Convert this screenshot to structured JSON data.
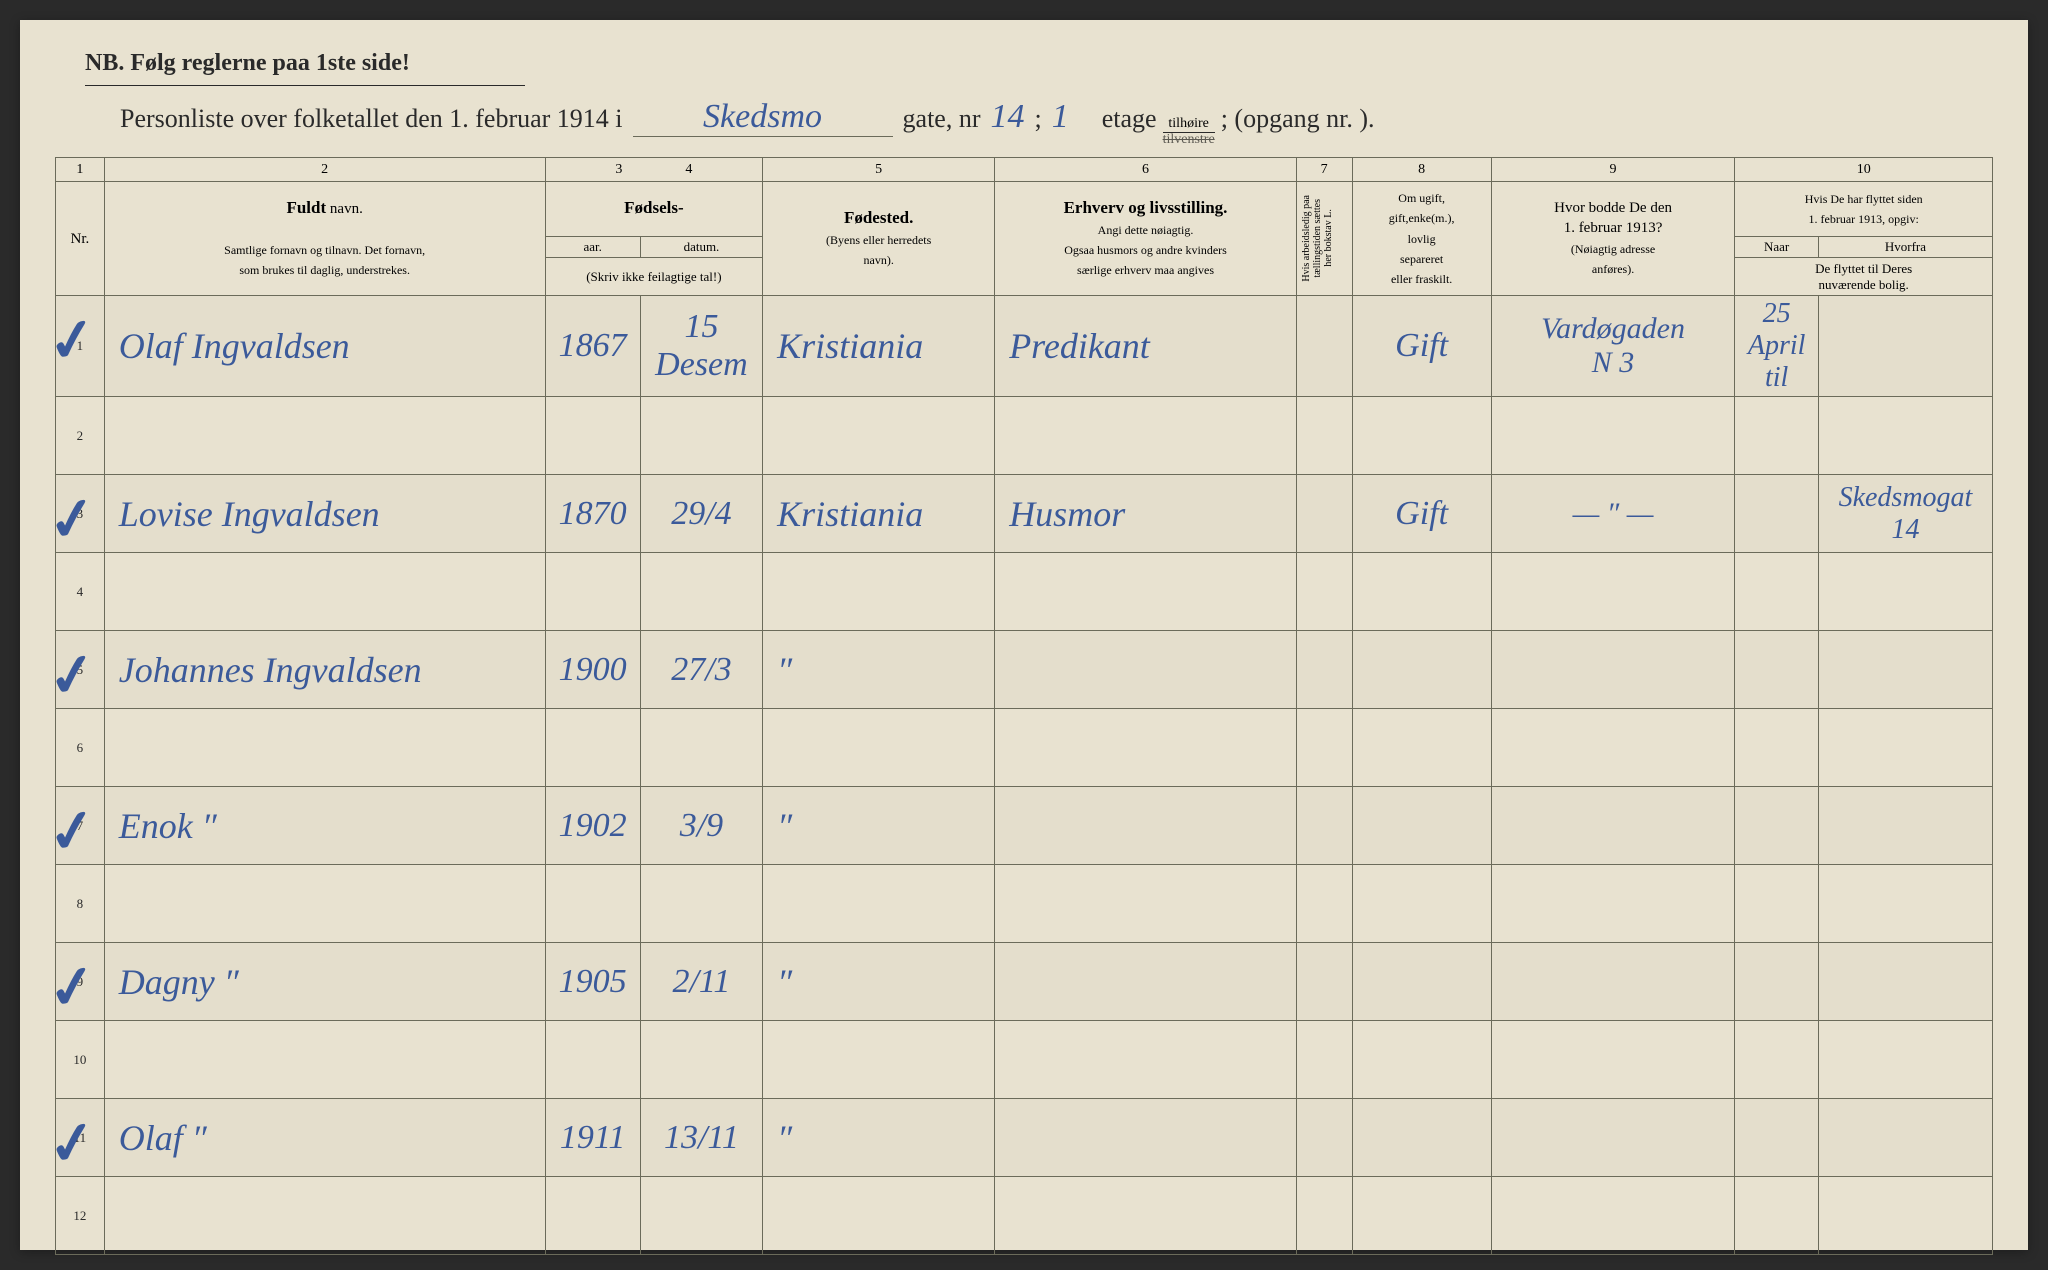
{
  "nb": "NB.   Følg  reglerne  paa  1ste  side!",
  "title": {
    "prefix": "Personliste over folketallet den 1. februar 1914 i",
    "street": "Skedsmo",
    "gate_label": "gate, nr",
    "gate_nr": "14",
    "semicolon": ";",
    "etage_nr": "1",
    "etage_label": "etage",
    "frac_top": "tilhøire",
    "frac_bot": "tilvenstre",
    "opgang": "; (opgang nr.          ).",
    "opgang_nr": ""
  },
  "colnums": [
    "1",
    "2",
    "3",
    "4",
    "5",
    "6",
    "7",
    "8",
    "9",
    "10"
  ],
  "headers": {
    "nr": "Nr.",
    "fuldt": "Fuldt",
    "navn": "navn.",
    "fuldt_sub": "Samtlige fornavn og tilnavn.  Det fornavn,\nsom brukes til daglig, understrekes.",
    "fodsels": "Fødsels-",
    "aar": "aar.",
    "datum": "datum.",
    "skriv": "(Skriv ikke feilagtige tal!)",
    "fodested": "Fødested.",
    "fodested_sub": "(Byens eller herredets\nnavn).",
    "erhverv": "Erhverv og livsstilling.",
    "erhverv_sub": "Angi dette nøiagtig.\nOgsaa husmors og andre kvinders\nsærlige erhverv maa angives",
    "col7": "Hvis arbeidsledig paa\ntællingstiden sættes\nher bokstav L.",
    "col8": "Om ugift,\ngift,enke(m.),\nlovlig\nsepareret\neller fraskilt.",
    "col9": "Hvor bodde De den\n1. februar 1913?",
    "col9_sub": "(Nøiagtig adresse\nanføres).",
    "col10": "Hvis De har flyttet siden\n1. februar 1913, opgiv:",
    "naar": "Naar",
    "hvorfra": "Hvorfra",
    "col10_sub": "De flyttet til Deres\nnuværende bolig."
  },
  "rows": [
    {
      "nr": "1",
      "check": "✓",
      "name": "Olaf Ingvaldsen",
      "year": "1867",
      "date": "15 Desem",
      "place": "Kristiania",
      "work": "Predikant",
      "c7": "",
      "status": "Gift",
      "addr1913": "Vardøgaden\nN 3",
      "naar": "25 April\ntil",
      "hvorfra": ""
    },
    {
      "nr": "2",
      "check": "",
      "name": "",
      "year": "",
      "date": "",
      "place": "",
      "work": "",
      "c7": "",
      "status": "",
      "addr1913": "",
      "naar": "",
      "hvorfra": ""
    },
    {
      "nr": "3",
      "check": "✓",
      "name": "Lovise Ingvaldsen",
      "year": "1870",
      "date": "29/4",
      "place": "Kristiania",
      "work": "Husmor",
      "c7": "",
      "status": "Gift",
      "addr1913": "—  ″  —",
      "naar": "",
      "hvorfra": "Skedsmogat\n14"
    },
    {
      "nr": "4",
      "check": "",
      "name": "",
      "year": "",
      "date": "",
      "place": "",
      "work": "",
      "c7": "",
      "status": "",
      "addr1913": "",
      "naar": "",
      "hvorfra": ""
    },
    {
      "nr": "5",
      "check": "✓",
      "name": "Johannes Ingvaldsen",
      "year": "1900",
      "date": "27/3",
      "place": "″",
      "work": "",
      "c7": "",
      "status": "",
      "addr1913": "",
      "naar": "",
      "hvorfra": ""
    },
    {
      "nr": "6",
      "check": "",
      "name": "",
      "year": "",
      "date": "",
      "place": "",
      "work": "",
      "c7": "",
      "status": "",
      "addr1913": "",
      "naar": "",
      "hvorfra": ""
    },
    {
      "nr": "7",
      "check": "✓",
      "name": "Enok      ″",
      "year": "1902",
      "date": "3/9",
      "place": "″",
      "work": "",
      "c7": "",
      "status": "",
      "addr1913": "",
      "naar": "",
      "hvorfra": ""
    },
    {
      "nr": "8",
      "check": "",
      "name": "",
      "year": "",
      "date": "",
      "place": "",
      "work": "",
      "c7": "",
      "status": "",
      "addr1913": "",
      "naar": "",
      "hvorfra": ""
    },
    {
      "nr": "9",
      "check": "✓",
      "name": "Dagny    ″",
      "year": "1905",
      "date": "2/11",
      "place": "″",
      "work": "",
      "c7": "",
      "status": "",
      "addr1913": "",
      "naar": "",
      "hvorfra": ""
    },
    {
      "nr": "10",
      "check": "",
      "name": "",
      "year": "",
      "date": "",
      "place": "",
      "work": "",
      "c7": "",
      "status": "",
      "addr1913": "",
      "naar": "",
      "hvorfra": ""
    },
    {
      "nr": "11",
      "check": "✓",
      "name": "Olaf      ″",
      "year": "1911",
      "date": "13/11",
      "place": "″",
      "work": "",
      "c7": "",
      "status": "",
      "addr1913": "",
      "naar": "",
      "hvorfra": ""
    },
    {
      "nr": "12",
      "check": "",
      "name": "",
      "year": "",
      "date": "",
      "place": "",
      "work": "",
      "c7": "",
      "status": "",
      "addr1913": "",
      "naar": "",
      "hvorfra": ""
    }
  ],
  "colors": {
    "paper": "#e8e2d0",
    "ink": "#2a2a2a",
    "handwriting": "#3b5a9a",
    "border": "#6b6b5a"
  }
}
